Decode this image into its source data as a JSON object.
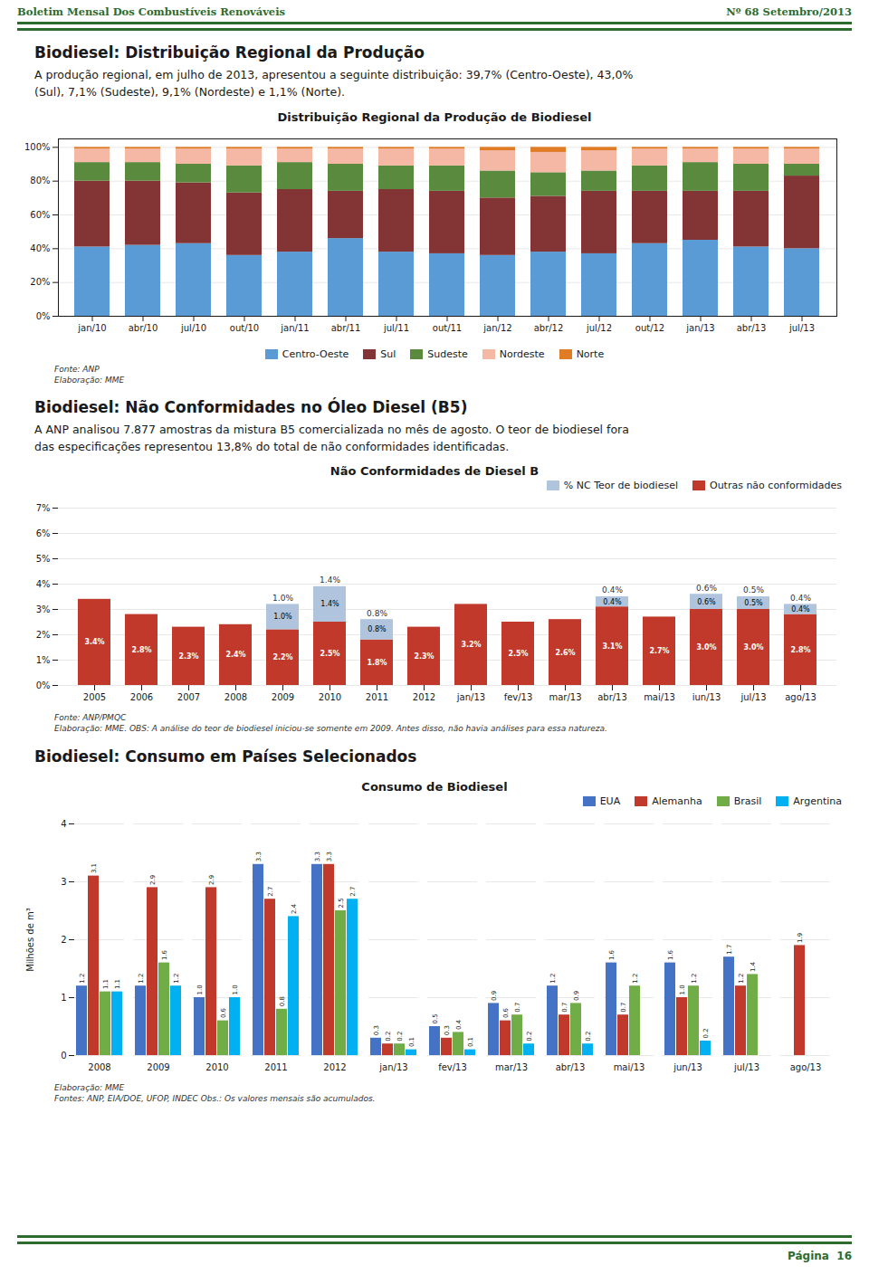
{
  "header": [
    "Boletim Mensal Dos Combustíveis Renováveis",
    "Nº 68 Setembro/2013"
  ],
  "footer": "Página  16",
  "color": "#2e6b2e",
  "chart_data": [
    {
      "type": "bar",
      "section": {
        "title": "Biodiesel: Distribuição Regional da Produção",
        "text": [
          "A produção regional, em julho de 2013, apresentou a seguinte distribuição: 39,7% (Centro-Oeste), 43,0%",
          "(Sul), 7,1% (Sudeste), 9,1% (Nordeste) e 1,1% (Norte)."
        ]
      },
      "title": "Distribuição Regional da Produção de Biodiesel",
      "categories": [
        "jan/10",
        "abr/10",
        "jul/10",
        "out/10",
        "jan/11",
        "abr/11",
        "jul/11",
        "out/11",
        "jan/12",
        "abr/12",
        "jul/12",
        "out/12",
        "jan/13",
        "abr/13",
        "jul/13"
      ],
      "series": [
        {
          "name": "Centro-Oeste",
          "color": "#5b9bd5",
          "values": [
            41,
            42,
            43,
            36,
            38,
            46,
            38,
            37,
            36,
            38,
            37,
            43,
            45,
            41,
            40
          ]
        },
        {
          "name": "Sul",
          "color": "#833536",
          "values": [
            39,
            38,
            36,
            37,
            37,
            28,
            37,
            37,
            34,
            33,
            37,
            31,
            29,
            33,
            43
          ]
        },
        {
          "name": "Sudeste",
          "color": "#5a8a3e",
          "values": [
            11,
            11,
            11,
            16,
            16,
            16,
            14,
            15,
            16,
            14,
            12,
            15,
            17,
            16,
            7
          ]
        },
        {
          "name": "Nordeste",
          "color": "#f4b8a4",
          "values": [
            8,
            8,
            9,
            10,
            8,
            9,
            10,
            10,
            12,
            12,
            12,
            10,
            8,
            9,
            9
          ]
        },
        {
          "name": "Norte",
          "color": "#e07b26",
          "values": [
            1,
            1,
            1,
            1,
            1,
            1,
            1,
            1,
            2,
            3,
            2,
            1,
            1,
            1,
            1
          ]
        }
      ],
      "stacked": true,
      "ylim": [
        0,
        105
      ],
      "yticks": [
        {
          "value": 0,
          "label": "0%"
        },
        {
          "value": 20,
          "label": "20%"
        },
        {
          "value": 40,
          "label": "40%"
        },
        {
          "value": 60,
          "label": "60%"
        },
        {
          "value": 80,
          "label": "80%"
        },
        {
          "value": 100,
          "label": "100%"
        }
      ],
      "grid": true,
      "legend": "bottom",
      "notes": [
        "Fonte: ANP",
        "Elaboração: MME"
      ]
    },
    {
      "type": "bar",
      "section": {
        "title": "Biodiesel: Não Conformidades no Óleo Diesel (B5)",
        "text": [
          "A ANP analisou 7.877 amostras da mistura B5 comercializada no mês de agosto. O teor de biodiesel fora",
          "das especificações representou 13,8% do total de não conformidades identificadas."
        ]
      },
      "title": "Não Conformidades de Diesel B",
      "categories": [
        "2005",
        "2006",
        "2007",
        "2008",
        "2009",
        "2010",
        "2011",
        "2012",
        "jan/13",
        "fev/13",
        "mar/13",
        "abr/13",
        "mai/13",
        "iun/13",
        "jul/13",
        "ago/13"
      ],
      "series": [
        {
          "name": "% NC Teor de biodiesel",
          "color": "#b0c4de",
          "values": [
            0.0,
            0.0,
            0.0,
            0.0,
            1.0,
            1.4,
            0.8,
            0.0,
            0.0,
            0.0,
            0.0,
            0.4,
            0.0,
            0.6,
            0.5,
            0.4
          ],
          "value_labels": [
            null,
            null,
            null,
            null,
            "1.0%",
            "1.4%",
            "0.8%",
            null,
            null,
            null,
            null,
            "0.4%",
            null,
            "0.6%",
            "0.5%",
            "0.4%"
          ]
        },
        {
          "name": "Outras não conformidades",
          "color": "#c0392b",
          "values": [
            3.4,
            2.8,
            2.3,
            2.4,
            2.2,
            2.5,
            1.8,
            2.3,
            3.2,
            2.5,
            2.6,
            3.1,
            2.7,
            3.0,
            3.0,
            2.8
          ],
          "value_labels": [
            "3.4%",
            "2.8%",
            "2.3%",
            "2.4%",
            "2.2%",
            "2.5%",
            "1.8%",
            "2.3%",
            "3.2%",
            "2.5%",
            "2.6%",
            "3.1%",
            "2.7%",
            "3.0%",
            "3.0%",
            "2.8%"
          ]
        }
      ],
      "stacked": true,
      "data_labels": true,
      "ylim": [
        0,
        7
      ],
      "yticks": [
        {
          "value": 0,
          "label": "0%"
        },
        {
          "value": 1,
          "label": "1%"
        },
        {
          "value": 2,
          "label": "2%"
        },
        {
          "value": 3,
          "label": "3%"
        },
        {
          "value": 4,
          "label": "4%"
        },
        {
          "value": 5,
          "label": "5%"
        },
        {
          "value": 6,
          "label": "6%"
        },
        {
          "value": 7,
          "label": "7%"
        }
      ],
      "grid": true,
      "legend": "top-right",
      "notes": [
        "Fonte: ANP/PMQC",
        "Elaboração: MME. OBS: A análise do teor de biodiesel iniciou-se somente em 2009. Antes disso, não havia análises para essa natureza."
      ]
    },
    {
      "type": "bar",
      "section": {
        "title": "Biodiesel: Consumo em Países Selecionados"
      },
      "title": "Consumo de Biodiesel",
      "ylabel": "Milhões de m³",
      "categories": [
        "2008",
        "2009",
        "2010",
        "2011",
        "2012",
        "jan/13",
        "fev/13",
        "mar/13",
        "abr/13",
        "mai/13",
        "jun/13",
        "jul/13",
        "ago/13"
      ],
      "series": [
        {
          "name": "EUA",
          "color": "#4472c4",
          "values": [
            1.2,
            1.2,
            1.0,
            3.3,
            3.3,
            0.3,
            0.5,
            0.9,
            1.2,
            1.6,
            1.6,
            1.7,
            0.0
          ],
          "value_labels": [
            "1.2",
            "1.2",
            "1.0",
            "3.3",
            "3.3",
            "0.3",
            "0.5",
            "0.9",
            "1.2",
            "1.6",
            "1.6",
            "1.7",
            null
          ]
        },
        {
          "name": "Alemanha",
          "color": "#c0392b",
          "values": [
            3.1,
            2.9,
            2.9,
            2.7,
            3.3,
            0.2,
            0.3,
            0.6,
            0.7,
            0.7,
            1.0,
            1.2,
            1.9
          ],
          "value_labels": [
            "3.1",
            "2.9",
            "2.9",
            "2.7",
            "3.3",
            "0.2",
            "0.3",
            "0.6",
            "0.7",
            "0.7",
            "1.0",
            "1.2",
            "1.9"
          ]
        },
        {
          "name": "Brasil",
          "color": "#70ad47",
          "values": [
            1.1,
            1.6,
            0.6,
            0.8,
            2.5,
            0.2,
            0.4,
            0.7,
            0.9,
            1.2,
            1.2,
            1.4,
            0.0
          ],
          "value_labels": [
            "1.1",
            "1.6",
            "0.6",
            "0.8",
            "2.5",
            "0.2",
            "0.4",
            "0.7",
            "0.9",
            "1.2",
            "1.2",
            "1.4",
            null
          ]
        },
        {
          "name": "Argentina",
          "color": "#00b0f0",
          "values": [
            1.1,
            1.2,
            1.0,
            2.4,
            2.7,
            0.1,
            0.1,
            0.2,
            0.2,
            0.0,
            0.25,
            0.0,
            0.0
          ],
          "value_labels": [
            "1.1",
            "1.2",
            "1.0",
            "2.4",
            "2.7",
            "0.1",
            "0.1",
            "0.2",
            "0.2",
            null,
            "0.2",
            null,
            null
          ]
        }
      ],
      "data_labels": true,
      "ylim": [
        0,
        4
      ],
      "yticks": [
        0,
        1,
        2,
        3,
        4
      ],
      "grid": true,
      "legend": "top-right",
      "notes": [
        "Elaboração: MME",
        "Fontes: ANP, EIA/DOE, UFOP, INDEC    Obs.: Os valores mensais são acumulados."
      ]
    }
  ]
}
